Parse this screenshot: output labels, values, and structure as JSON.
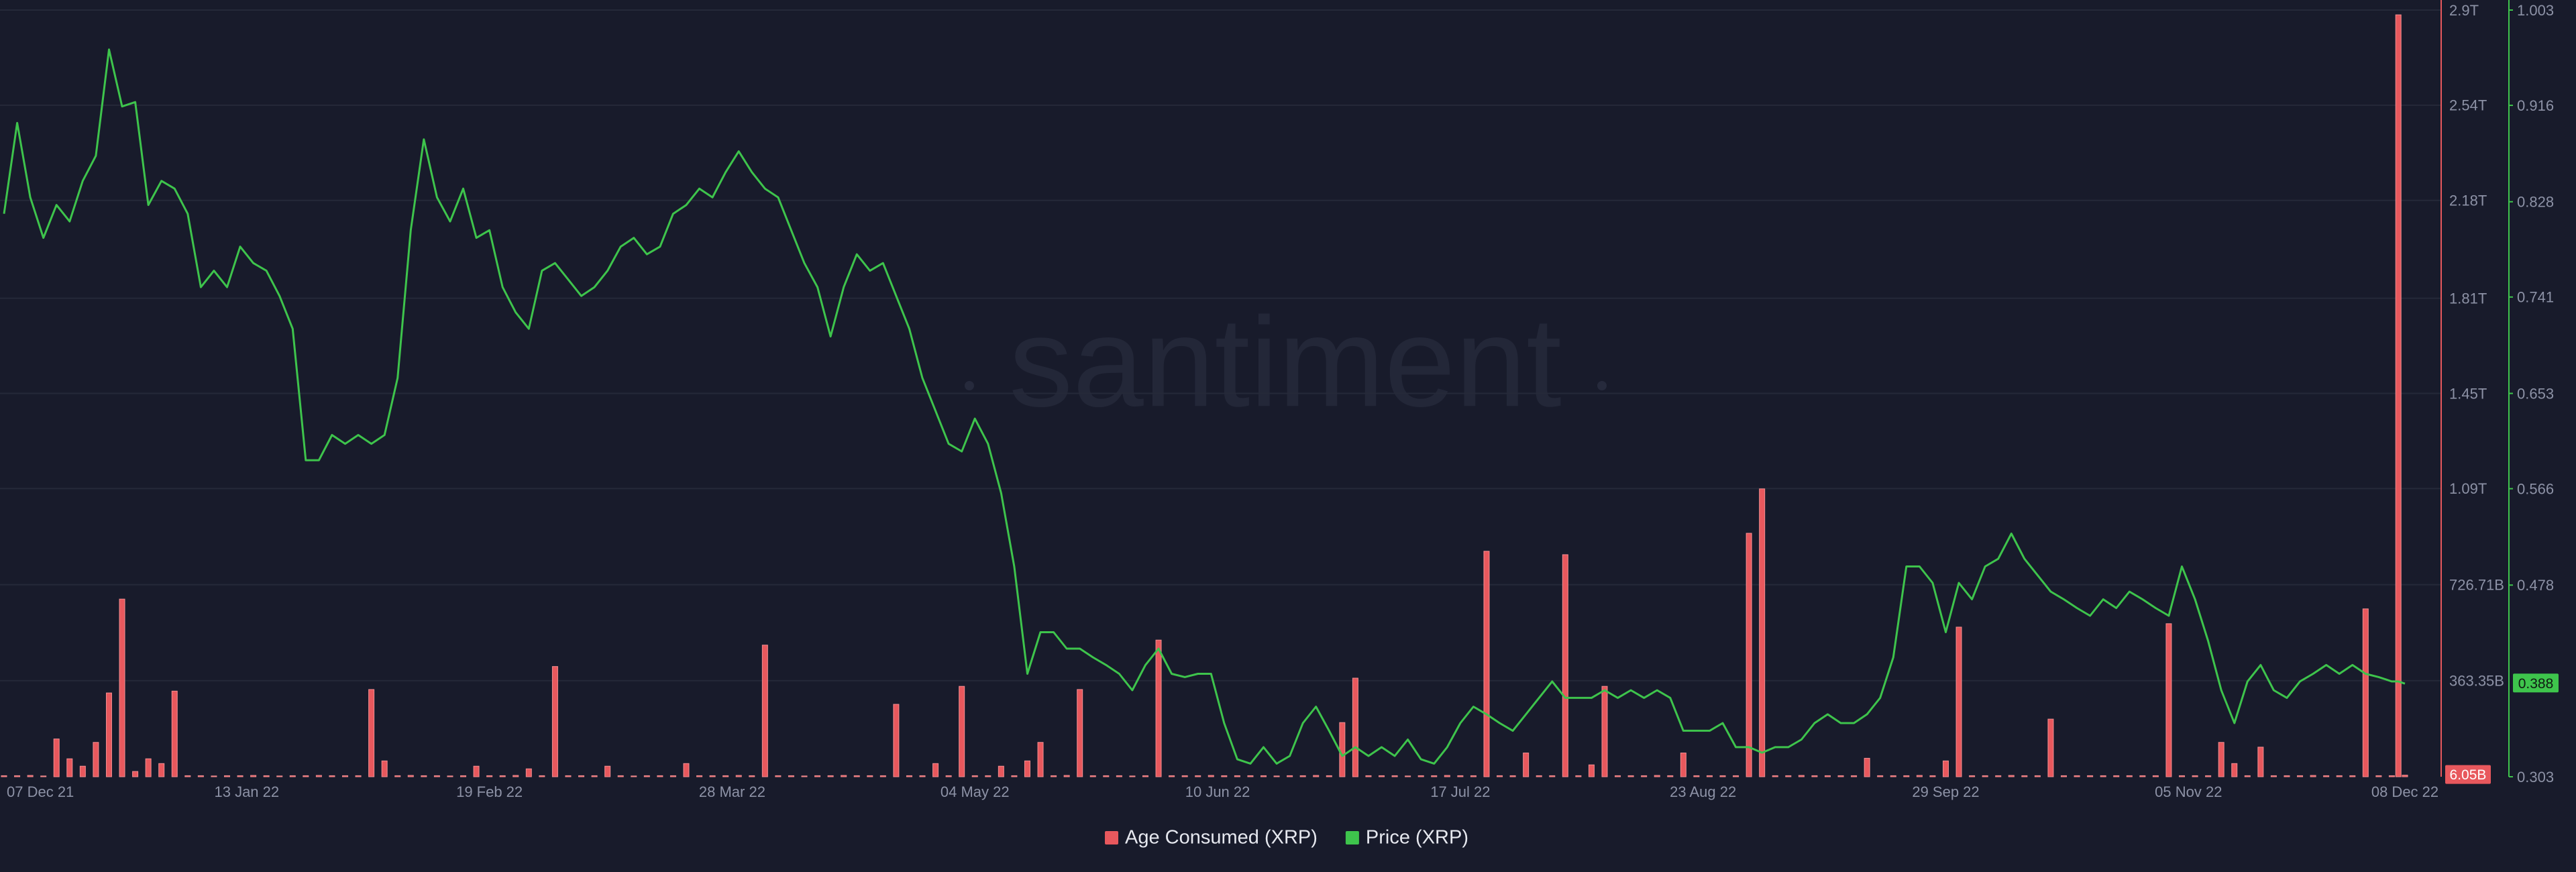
{
  "chart_data": {
    "type": "combo",
    "watermark": "santiment",
    "x": [
      "07 Dec 21",
      "09 Dec 21",
      "11 Dec 21",
      "13 Dec 21",
      "15 Dec 21",
      "17 Dec 21",
      "19 Dec 21",
      "21 Dec 21",
      "23 Dec 21",
      "25 Dec 21",
      "27 Dec 21",
      "29 Dec 21",
      "31 Dec 21",
      "02 Jan 22",
      "04 Jan 22",
      "06 Jan 22",
      "08 Jan 22",
      "10 Jan 22",
      "12 Jan 22",
      "14 Jan 22",
      "16 Jan 22",
      "18 Jan 22",
      "20 Jan 22",
      "22 Jan 22",
      "24 Jan 22",
      "26 Jan 22",
      "28 Jan 22",
      "30 Jan 22",
      "01 Feb 22",
      "03 Feb 22",
      "05 Feb 22",
      "07 Feb 22",
      "09 Feb 22",
      "11 Feb 22",
      "13 Feb 22",
      "15 Feb 22",
      "17 Feb 22",
      "19 Feb 22",
      "21 Feb 22",
      "23 Feb 22",
      "25 Feb 22",
      "27 Feb 22",
      "01 Mar 22",
      "03 Mar 22",
      "05 Mar 22",
      "07 Mar 22",
      "09 Mar 22",
      "11 Mar 22",
      "13 Mar 22",
      "15 Mar 22",
      "17 Mar 22",
      "19 Mar 22",
      "21 Mar 22",
      "23 Mar 22",
      "25 Mar 22",
      "27 Mar 22",
      "29 Mar 22",
      "31 Mar 22",
      "02 Apr 22",
      "04 Apr 22",
      "06 Apr 22",
      "08 Apr 22",
      "10 Apr 22",
      "12 Apr 22",
      "14 Apr 22",
      "16 Apr 22",
      "18 Apr 22",
      "20 Apr 22",
      "22 Apr 22",
      "24 Apr 22",
      "26 Apr 22",
      "28 Apr 22",
      "30 Apr 22",
      "02 May 22",
      "04 May 22",
      "06 May 22",
      "08 May 22",
      "10 May 22",
      "12 May 22",
      "14 May 22",
      "16 May 22",
      "18 May 22",
      "20 May 22",
      "22 May 22",
      "24 May 22",
      "26 May 22",
      "28 May 22",
      "30 May 22",
      "01 Jun 22",
      "03 Jun 22",
      "05 Jun 22",
      "07 Jun 22",
      "09 Jun 22",
      "11 Jun 22",
      "13 Jun 22",
      "15 Jun 22",
      "17 Jun 22",
      "19 Jun 22",
      "21 Jun 22",
      "23 Jun 22",
      "25 Jun 22",
      "27 Jun 22",
      "29 Jun 22",
      "01 Jul 22",
      "03 Jul 22",
      "05 Jul 22",
      "07 Jul 22",
      "09 Jul 22",
      "11 Jul 22",
      "13 Jul 22",
      "15 Jul 22",
      "17 Jul 22",
      "19 Jul 22",
      "21 Jul 22",
      "23 Jul 22",
      "25 Jul 22",
      "27 Jul 22",
      "29 Jul 22",
      "31 Jul 22",
      "02 Aug 22",
      "04 Aug 22",
      "06 Aug 22",
      "08 Aug 22",
      "10 Aug 22",
      "12 Aug 22",
      "14 Aug 22",
      "16 Aug 22",
      "18 Aug 22",
      "20 Aug 22",
      "22 Aug 22",
      "24 Aug 22",
      "26 Aug 22",
      "28 Aug 22",
      "30 Aug 22",
      "01 Sep 22",
      "03 Sep 22",
      "05 Sep 22",
      "07 Sep 22",
      "09 Sep 22",
      "11 Sep 22",
      "13 Sep 22",
      "15 Sep 22",
      "17 Sep 22",
      "19 Sep 22",
      "21 Sep 22",
      "23 Sep 22",
      "25 Sep 22",
      "27 Sep 22",
      "29 Sep 22",
      "01 Oct 22",
      "03 Oct 22",
      "05 Oct 22",
      "07 Oct 22",
      "09 Oct 22",
      "11 Oct 22",
      "13 Oct 22",
      "15 Oct 22",
      "17 Oct 22",
      "19 Oct 22",
      "21 Oct 22",
      "23 Oct 22",
      "25 Oct 22",
      "27 Oct 22",
      "29 Oct 22",
      "31 Oct 22",
      "02 Nov 22",
      "04 Nov 22",
      "06 Nov 22",
      "08 Nov 22",
      "10 Nov 22",
      "12 Nov 22",
      "14 Nov 22",
      "16 Nov 22",
      "18 Nov 22",
      "20 Nov 22",
      "22 Nov 22",
      "24 Nov 22",
      "26 Nov 22",
      "28 Nov 22",
      "30 Nov 22",
      "02 Dec 22",
      "04 Dec 22",
      "06 Dec 22",
      "07 Dec 22",
      "08 Dec 22"
    ],
    "xlim": [
      "07 Dec 21",
      "08 Dec 22"
    ],
    "xticks": [
      "07 Dec 21",
      "13 Jan 22",
      "19 Feb 22",
      "28 Mar 22",
      "04 May 22",
      "10 Jun 22",
      "17 Jul 22",
      "23 Aug 22",
      "29 Sep 22",
      "05 Nov 22",
      "08 Dec 22"
    ],
    "ylim": [
      0,
      2900000000000.0
    ],
    "yticks": [
      {
        "value": 363350000000.0,
        "label": "363.35B"
      },
      {
        "value": 726710000000.0,
        "label": "726.71B"
      },
      {
        "value": 1090000000000.0,
        "label": "1.09T"
      },
      {
        "value": 1450000000000.0,
        "label": "1.45T"
      },
      {
        "value": 1810000000000.0,
        "label": "1.81T"
      },
      {
        "value": 2180000000000.0,
        "label": "2.18T"
      },
      {
        "value": 2540000000000.0,
        "label": "2.54T"
      },
      {
        "value": 2900000000000.0,
        "label": "2.9T"
      }
    ],
    "y2lim": [
      0.303,
      1.003
    ],
    "y2ticks": [
      0.303,
      0.478,
      0.566,
      0.653,
      0.741,
      0.828,
      0.916,
      1.003
    ],
    "grid": true,
    "legend": "bottom",
    "series": [
      {
        "name": "Age Consumed (XRP)",
        "type": "bar",
        "color": "#e8585d",
        "values": [
          4000000000.0,
          4000000000.0,
          5000000000.0,
          3000000000.0,
          143000000000.0,
          68000000000.0,
          40000000000.0,
          130000000000.0,
          317000000000.0,
          672000000000.0,
          20000000000.0,
          68000000000.0,
          50000000000.0,
          324000000000.0,
          4000000000.0,
          4000000000.0,
          3000000000.0,
          4000000000.0,
          4000000000.0,
          5000000000.0,
          4000000000.0,
          3000000000.0,
          4000000000.0,
          4000000000.0,
          5000000000.0,
          4000000000.0,
          4000000000.0,
          4000000000.0,
          330000000000.0,
          60000000000.0,
          4000000000.0,
          5000000000.0,
          4000000000.0,
          4000000000.0,
          3000000000.0,
          4000000000.0,
          40000000000.0,
          4000000000.0,
          4000000000.0,
          5000000000.0,
          30000000000.0,
          4000000000.0,
          417000000000.0,
          4000000000.0,
          4000000000.0,
          4000000000.0,
          40000000000.0,
          4000000000.0,
          3000000000.0,
          4000000000.0,
          4000000000.0,
          4000000000.0,
          50000000000.0,
          4000000000.0,
          4000000000.0,
          4000000000.0,
          5000000000.0,
          4000000000.0,
          498000000000.0,
          4000000000.0,
          4000000000.0,
          3000000000.0,
          4000000000.0,
          4000000000.0,
          5000000000.0,
          4000000000.0,
          4000000000.0,
          4000000000.0,
          274000000000.0,
          4000000000.0,
          4000000000.0,
          50000000000.0,
          4000000000.0,
          342000000000.0,
          4000000000.0,
          4000000000.0,
          40000000000.0,
          4000000000.0,
          60000000000.0,
          130000000000.0,
          4000000000.0,
          5000000000.0,
          330000000000.0,
          4000000000.0,
          4000000000.0,
          4000000000.0,
          3000000000.0,
          4000000000.0,
          517000000000.0,
          4000000000.0,
          4000000000.0,
          4000000000.0,
          5000000000.0,
          4000000000.0,
          4000000000.0,
          4000000000.0,
          4000000000.0,
          3000000000.0,
          4000000000.0,
          4000000000.0,
          5000000000.0,
          4000000000.0,
          205000000000.0,
          373000000000.0,
          4000000000.0,
          4000000000.0,
          4000000000.0,
          3000000000.0,
          4000000000.0,
          4000000000.0,
          5000000000.0,
          4000000000.0,
          4000000000.0,
          853000000000.0,
          4000000000.0,
          4000000000.0,
          90000000000.0,
          4000000000.0,
          4000000000.0,
          840000000000.0,
          4000000000.0,
          45000000000.0,
          342000000000.0,
          4000000000.0,
          4000000000.0,
          4000000000.0,
          5000000000.0,
          4000000000.0,
          90000000000.0,
          4000000000.0,
          4000000000.0,
          4000000000.0,
          4000000000.0,
          921000000000.0,
          1089000000000.0,
          4000000000.0,
          4000000000.0,
          5000000000.0,
          4000000000.0,
          4000000000.0,
          4000000000.0,
          4000000000.0,
          70000000000.0,
          4000000000.0,
          4000000000.0,
          4000000000.0,
          5000000000.0,
          4000000000.0,
          60000000000.0,
          566000000000.0,
          4000000000.0,
          4000000000.0,
          4000000000.0,
          5000000000.0,
          4000000000.0,
          4000000000.0,
          218000000000.0,
          4000000000.0,
          4000000000.0,
          4000000000.0,
          4000000000.0,
          4000000000.0,
          4000000000.0,
          4000000000.0,
          4000000000.0,
          579000000000.0,
          4000000000.0,
          4000000000.0,
          4000000000.0,
          130000000000.0,
          50000000000.0,
          4000000000.0,
          112000000000.0,
          4000000000.0,
          4000000000.0,
          4000000000.0,
          5000000000.0,
          4000000000.0,
          4000000000.0,
          4000000000.0,
          635000000000.0,
          4000000000.0,
          4000000000.0,
          2882000000000.0,
          6050000000.0
        ],
        "value_labels": [
          null,
          null,
          null,
          null,
          null,
          null,
          null,
          null,
          null,
          null,
          null,
          null,
          null,
          null,
          null,
          null,
          null,
          null,
          null,
          null,
          null,
          null,
          null,
          null,
          null,
          null,
          null,
          null,
          null,
          null,
          null,
          null,
          null,
          null,
          null,
          null,
          null,
          null,
          null,
          null,
          null,
          null,
          null,
          null,
          null,
          null,
          null,
          null,
          null,
          null,
          null,
          null,
          null,
          null,
          null,
          null,
          null,
          null,
          null,
          null,
          null,
          null,
          null,
          null,
          null,
          null,
          null,
          null,
          null,
          null,
          null,
          null,
          null,
          null,
          null,
          null,
          null,
          null,
          null,
          null,
          null,
          null,
          null,
          null,
          null,
          null,
          null,
          null,
          null,
          null,
          null,
          null,
          null,
          null,
          null,
          null,
          null,
          null,
          null,
          null,
          null,
          null,
          null,
          null,
          null,
          null,
          null,
          null,
          null,
          null,
          null,
          null,
          null,
          null,
          null,
          null,
          null,
          null,
          null,
          null,
          null,
          null,
          null,
          null,
          null,
          null,
          null,
          null,
          null,
          null,
          null,
          null,
          null,
          null,
          null,
          null,
          null,
          null,
          null,
          null,
          null,
          null,
          null,
          null,
          null,
          null,
          null,
          null,
          null,
          null,
          null,
          null,
          null,
          null,
          null,
          null,
          null,
          null,
          null,
          null,
          null,
          null,
          null,
          null,
          null,
          null,
          null,
          null,
          null,
          null,
          null,
          null,
          null,
          null,
          null,
          null,
          null,
          null,
          null,
          null,
          null,
          null,
          null,
          null,
          "6.05B"
        ]
      },
      {
        "name": "Price (XRP)",
        "type": "line",
        "axis": "y2",
        "color": "#3ec44c",
        "values": [
          0.817,
          0.9,
          0.832,
          0.795,
          0.825,
          0.81,
          0.847,
          0.87,
          0.967,
          0.915,
          0.919,
          0.825,
          0.847,
          0.84,
          0.817,
          0.75,
          0.765,
          0.75,
          0.787,
          0.772,
          0.765,
          0.742,
          0.712,
          0.592,
          0.592,
          0.615,
          0.607,
          0.615,
          0.607,
          0.615,
          0.667,
          0.802,
          0.885,
          0.832,
          0.81,
          0.84,
          0.795,
          0.802,
          0.75,
          0.727,
          0.712,
          0.765,
          0.772,
          0.757,
          0.742,
          0.75,
          0.765,
          0.787,
          0.795,
          0.78,
          0.787,
          0.817,
          0.825,
          0.84,
          0.832,
          0.855,
          0.874,
          0.855,
          0.84,
          0.832,
          0.802,
          0.772,
          0.75,
          0.705,
          0.75,
          0.78,
          0.765,
          0.772,
          0.742,
          0.712,
          0.667,
          0.637,
          0.607,
          0.6,
          0.63,
          0.607,
          0.562,
          0.495,
          0.397,
          0.435,
          0.435,
          0.42,
          0.42,
          0.412,
          0.405,
          0.397,
          0.382,
          0.405,
          0.42,
          0.397,
          0.394,
          0.397,
          0.397,
          0.352,
          0.319,
          0.315,
          0.33,
          0.315,
          0.322,
          0.352,
          0.367,
          0.345,
          0.322,
          0.33,
          0.322,
          0.33,
          0.322,
          0.337,
          0.319,
          0.315,
          0.33,
          0.352,
          0.367,
          0.36,
          0.352,
          0.345,
          0.36,
          0.375,
          0.39,
          0.375,
          0.375,
          0.375,
          0.382,
          0.375,
          0.382,
          0.375,
          0.382,
          0.375,
          0.345,
          0.345,
          0.345,
          0.352,
          0.33,
          0.33,
          0.325,
          0.33,
          0.33,
          0.337,
          0.352,
          0.36,
          0.352,
          0.352,
          0.36,
          0.375,
          0.412,
          0.495,
          0.495,
          0.48,
          0.435,
          0.48,
          0.465,
          0.495,
          0.502,
          0.525,
          0.502,
          0.487,
          0.472,
          0.465,
          0.457,
          0.45,
          0.465,
          0.457,
          0.472,
          0.465,
          0.457,
          0.45,
          0.495,
          0.465,
          0.427,
          0.382,
          0.352,
          0.39,
          0.405,
          0.382,
          0.375,
          0.39,
          0.397,
          0.405,
          0.397,
          0.405,
          0.397,
          0.394,
          0.39,
          0.39,
          0.388
        ]
      }
    ]
  }
}
